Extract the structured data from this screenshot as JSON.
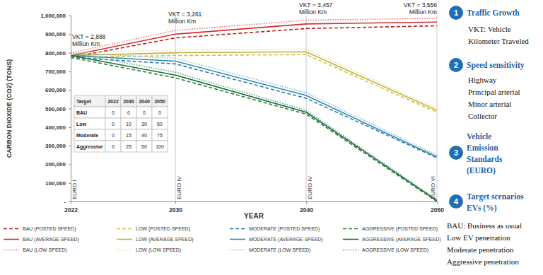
{
  "chart_data": {
    "type": "line",
    "x_label": "YEAR",
    "y_label": "CARBON DIOXIDE (CO2) (TONS)",
    "x": [
      2022,
      2030,
      2040,
      2050
    ],
    "xlim": [
      2022,
      2050
    ],
    "xticks": [
      2022,
      2030,
      2040,
      2050
    ],
    "ylim": [
      0,
      1000000
    ],
    "yticks": [
      {
        "value": 0,
        "label": "-"
      },
      {
        "value": 100000,
        "label": "100,000"
      },
      {
        "value": 200000,
        "label": "200,000"
      },
      {
        "value": 300000,
        "label": "300,000"
      },
      {
        "value": 400000,
        "label": "400,000"
      },
      {
        "value": 500000,
        "label": "500,000"
      },
      {
        "value": 600000,
        "label": "600,000"
      },
      {
        "value": 700000,
        "label": "700,000"
      },
      {
        "value": 800000,
        "label": "800,000"
      },
      {
        "value": 900000,
        "label": "900,000"
      },
      {
        "value": 1000000,
        "label": "1,000,000"
      }
    ],
    "grid": false,
    "legend": "bottom",
    "series": [
      {
        "name": "BAU (POSTED SPEED)",
        "color": "#b71c1c",
        "line_style": "dashed",
        "values": [
          775000,
          880000,
          930000,
          945000
        ]
      },
      {
        "name": "LOW (POSTED SPEED)",
        "color": "#d6c042",
        "line_style": "dashed",
        "values": [
          775000,
          785000,
          790000,
          480000
        ]
      },
      {
        "name": "MODERATE (POSTED SPEED)",
        "color": "#2e75b6",
        "line_style": "dashed",
        "values": [
          775000,
          740000,
          555000,
          235000
        ]
      },
      {
        "name": "AGGRESSIVE (POSTED SPEED)",
        "color": "#2e7d32",
        "line_style": "dashed",
        "values": [
          775000,
          665000,
          470000,
          0
        ]
      },
      {
        "name": "BAU (AVERAGE SPEED)",
        "color": "#d32f2f",
        "line_style": "solid",
        "values": [
          785000,
          900000,
          955000,
          965000
        ]
      },
      {
        "name": "LOW (AVERAGE SPEED)",
        "color": "#bdb13a",
        "line_style": "solid",
        "values": [
          785000,
          800000,
          805000,
          490000
        ]
      },
      {
        "name": "MODERATE (AVERAGE SPEED)",
        "color": "#2a8ca8",
        "line_style": "solid",
        "values": [
          785000,
          755000,
          570000,
          240000
        ]
      },
      {
        "name": "AGGRESSIVE (AVERAGE SPEED)",
        "color": "#1b6b3a",
        "line_style": "solid",
        "values": [
          785000,
          680000,
          480000,
          5000
        ]
      },
      {
        "name": "BAU (LOW SPEED)",
        "color": "#e57373",
        "line_style": "dotted",
        "values": [
          800000,
          920000,
          975000,
          985000
        ]
      },
      {
        "name": "LOW (LOW SPEED)",
        "color": "#e8df94",
        "line_style": "dotted",
        "values": [
          800000,
          815000,
          820000,
          500000
        ]
      },
      {
        "name": "MODERATE (LOW SPEED)",
        "color": "#7fb3d9",
        "line_style": "dotted",
        "values": [
          800000,
          770000,
          585000,
          250000
        ]
      },
      {
        "name": "AGGRESSIVE (LOW SPEED)",
        "color": "#4a9e8a",
        "line_style": "dotted",
        "values": [
          800000,
          695000,
          490000,
          10000
        ]
      }
    ],
    "annotations": [
      {
        "x": 2022,
        "lines": [
          "VKT = 2,888",
          "Million Km"
        ]
      },
      {
        "x": 2030,
        "lines": [
          "VKT = 3,261",
          "Million Km"
        ]
      },
      {
        "x": 2040,
        "lines": [
          "VKT = 3,457",
          "Million Km"
        ]
      },
      {
        "x": 2050,
        "lines": [
          "VKT = 3,556",
          "Million Km"
        ]
      }
    ],
    "vertical_annotations": [
      {
        "x": 2022,
        "text": "EURO I"
      },
      {
        "x": 2030,
        "text": "EURO IV"
      },
      {
        "x": 2040,
        "text": "EURO IV"
      },
      {
        "x": 2050,
        "text": "EURO VI"
      }
    ]
  },
  "inset_table": {
    "header": [
      "Target",
      "2022",
      "2030",
      "2040",
      "2050"
    ],
    "rows": [
      [
        "BAU",
        0,
        0,
        0,
        0
      ],
      [
        "Low",
        0,
        10,
        30,
        50
      ],
      [
        "Moderate",
        0,
        15,
        40,
        75
      ],
      [
        "Aggressive",
        0,
        25,
        50,
        100
      ]
    ]
  },
  "key_panel": [
    {
      "number": 1,
      "title": [
        "Traffic Growth"
      ],
      "lines": [
        "VKT: Vehicle",
        "Kilometer Traveled"
      ]
    },
    {
      "number": 2,
      "title": [
        "Speed sensitivity"
      ],
      "lines": [
        "Highway",
        "Principal arterial",
        "Minor arterial",
        "Collector"
      ]
    },
    {
      "number": 3,
      "title": [
        "Vehicle",
        "Emission",
        "Standards",
        "(EURO)"
      ]
    },
    {
      "number": 4,
      "title": [
        "Target scenarios",
        "EVs (%)"
      ],
      "lines": [
        "BAU: Business as usual",
        "Low EV penetration",
        "Moderate penetration",
        "Aggressive penetration"
      ]
    }
  ]
}
